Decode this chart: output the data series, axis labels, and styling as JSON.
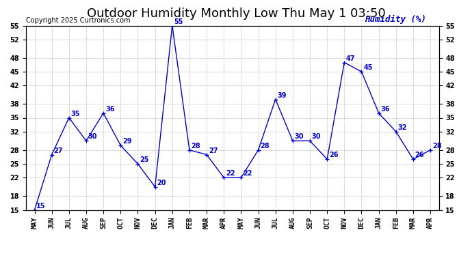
{
  "title": "Outdoor Humidity Monthly Low Thu May 1 03:50",
  "copyright": "Copyright 2025 Curtronics.com",
  "ylabel": "Humidity (%)",
  "categories": [
    "MAY",
    "JUN",
    "JUL",
    "AUG",
    "SEP",
    "OCT",
    "NOV",
    "DEC",
    "JAN",
    "FEB",
    "MAR",
    "APR",
    "MAY",
    "JUN",
    "JUL",
    "AUG",
    "SEP",
    "OCT",
    "NOV",
    "DEC",
    "JAN",
    "FEB",
    "MAR",
    "APR"
  ],
  "values": [
    15,
    27,
    35,
    30,
    36,
    29,
    25,
    20,
    55,
    28,
    27,
    22,
    22,
    28,
    39,
    30,
    30,
    26,
    47,
    45,
    36,
    32,
    26,
    28
  ],
  "ylim": [
    15,
    55
  ],
  "yticks": [
    15,
    18,
    22,
    25,
    28,
    32,
    35,
    38,
    42,
    45,
    48,
    52,
    55
  ],
  "line_color": "#0000cc",
  "marker_color": "#0000cc",
  "bg_color": "#ffffff",
  "grid_color": "#aaaaaa",
  "title_fontsize": 13,
  "label_fontsize": 7,
  "tick_fontsize": 7,
  "copyright_fontsize": 7,
  "ylabel_fontsize": 9,
  "ylabel_color": "#0000cc"
}
